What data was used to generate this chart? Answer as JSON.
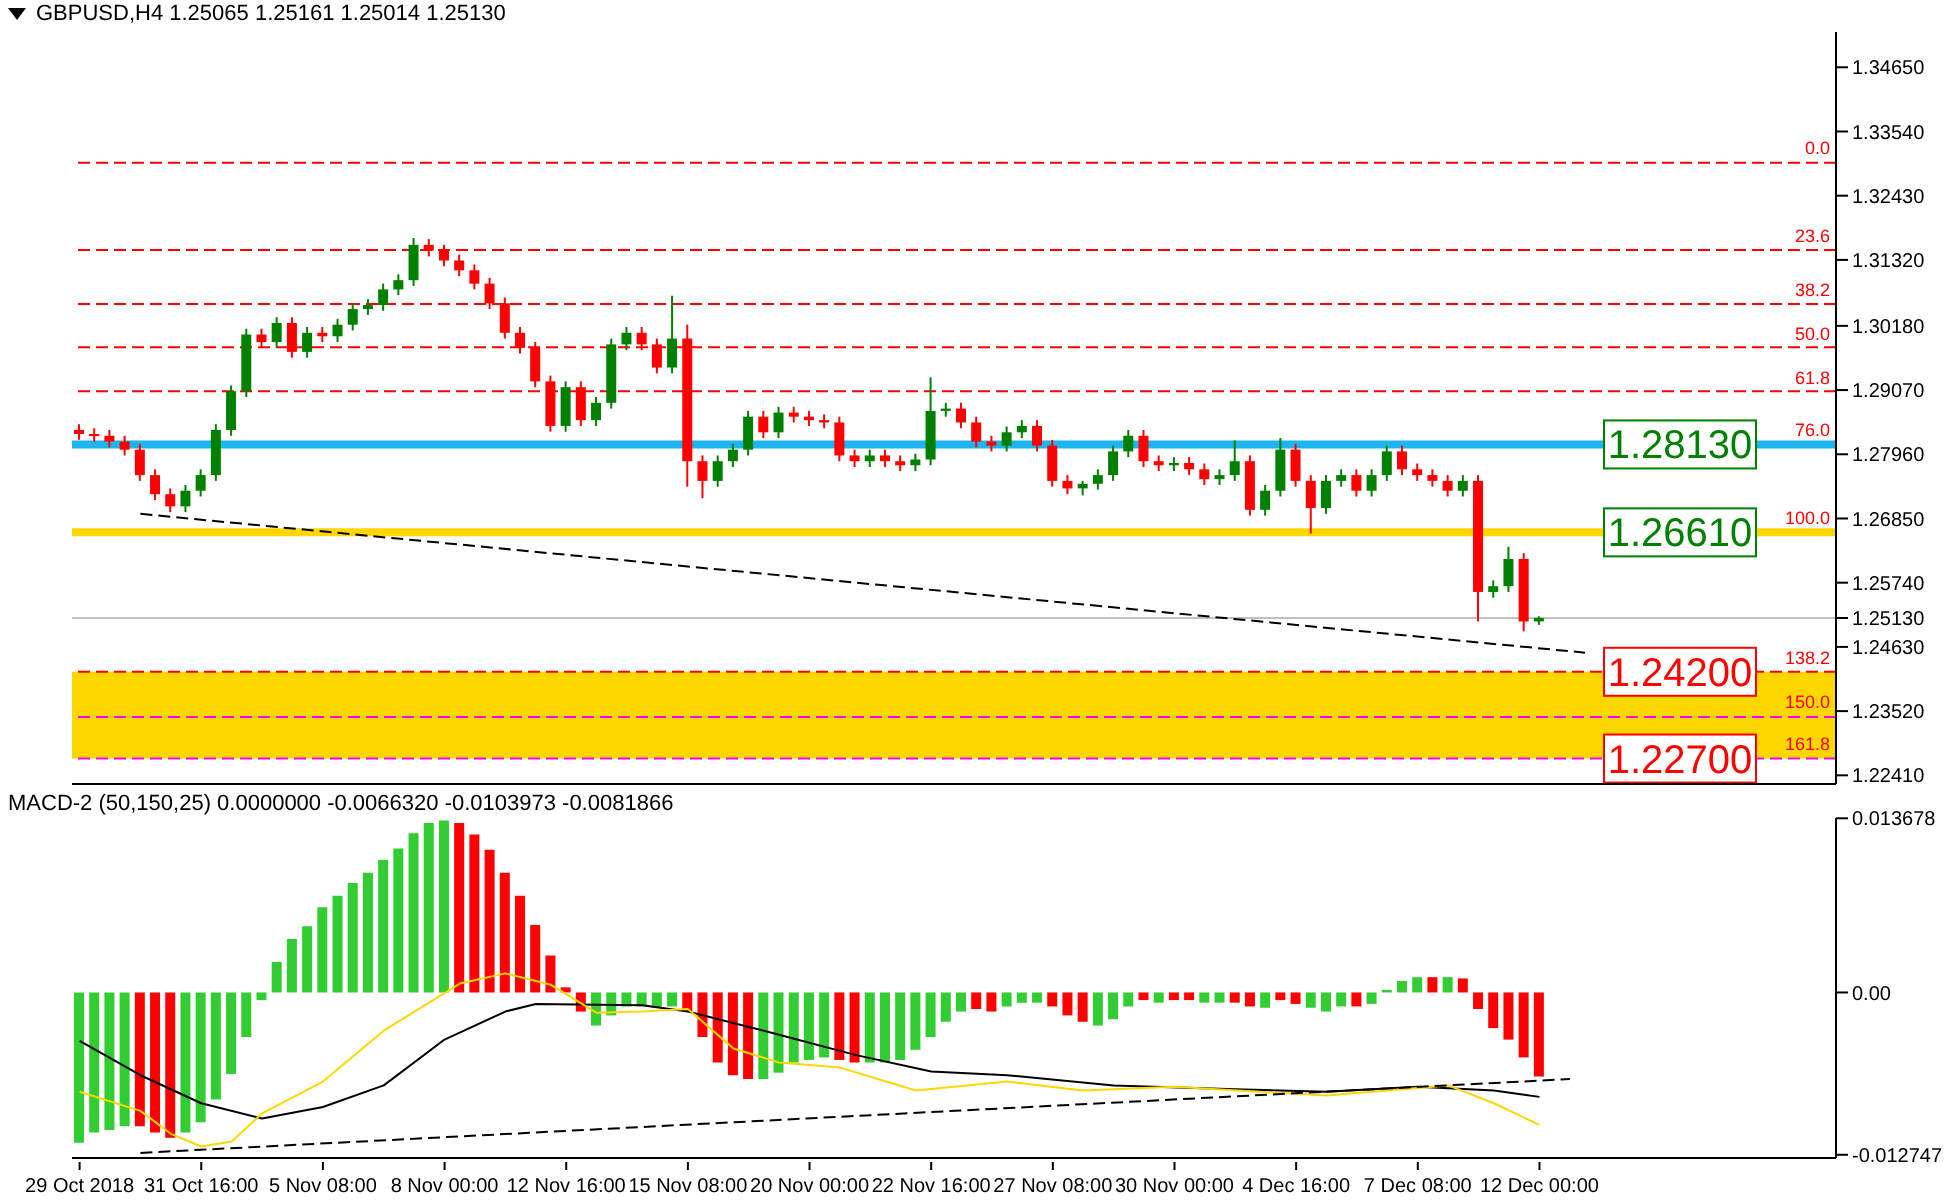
{
  "chart_data": [
    {
      "type": "candlestick",
      "title": "GBPUSD,H4 1.25065 1.25161 1.25014 1.25130",
      "categories": [
        null,
        null,
        null,
        null,
        null,
        null,
        null,
        null,
        null,
        null,
        null,
        null,
        null,
        null,
        null,
        null,
        null,
        null,
        null,
        null,
        null,
        null,
        null,
        null,
        null,
        null,
        null,
        null,
        null,
        null,
        null,
        null,
        null,
        null,
        null,
        null,
        null,
        null,
        null,
        null,
        null,
        null,
        null,
        null,
        null,
        null,
        null,
        null,
        null,
        null,
        null,
        null,
        null,
        null,
        null,
        null,
        null,
        null,
        null,
        null,
        null,
        null,
        null,
        null,
        null,
        null,
        null,
        null,
        null,
        null,
        null,
        null,
        null,
        null,
        null,
        null,
        null,
        null,
        null,
        null,
        null,
        null,
        null,
        null,
        null,
        null,
        null,
        null,
        null,
        null,
        null,
        null,
        null,
        null,
        null,
        null,
        null,
        null,
        null,
        null,
        null,
        null,
        null,
        null,
        null,
        null,
        null,
        null,
        null,
        null,
        null,
        null,
        null,
        null,
        null,
        null
      ],
      "ohlc": [
        [
          1.2838,
          1.2848,
          1.2821,
          1.2831
        ],
        [
          1.2831,
          1.2841,
          1.2818,
          1.2828
        ],
        [
          1.2828,
          1.2838,
          1.2808,
          1.2818
        ],
        [
          1.2818,
          1.2828,
          1.2794,
          1.2804
        ],
        [
          1.2804,
          1.2814,
          1.275,
          1.276
        ],
        [
          1.276,
          1.277,
          1.2717,
          1.2727
        ],
        [
          1.2727,
          1.2737,
          1.2696,
          1.2706
        ],
        [
          1.2706,
          1.2743,
          1.2696,
          1.2733
        ],
        [
          1.2733,
          1.277,
          1.2723,
          1.276
        ],
        [
          1.276,
          1.2848,
          1.275,
          1.2838
        ],
        [
          1.2838,
          1.2915,
          1.2828,
          1.2905
        ],
        [
          1.2905,
          1.3013,
          1.2895,
          1.3003
        ],
        [
          1.3003,
          1.3013,
          1.298,
          1.299
        ],
        [
          1.299,
          1.3033,
          1.298,
          1.3023
        ],
        [
          1.3023,
          1.3033,
          1.2963,
          1.2973
        ],
        [
          1.2973,
          1.3016,
          1.2963,
          1.3006
        ],
        [
          1.3006,
          1.3016,
          1.299,
          1.3
        ],
        [
          1.3,
          1.303,
          1.299,
          1.302
        ],
        [
          1.302,
          1.3057,
          1.301,
          1.3047
        ],
        [
          1.3047,
          1.3064,
          1.3037,
          1.3054
        ],
        [
          1.3054,
          1.3091,
          1.3044,
          1.3081
        ],
        [
          1.3081,
          1.3107,
          1.3071,
          1.3097
        ],
        [
          1.3097,
          1.317,
          1.3087,
          1.3158
        ],
        [
          1.3158,
          1.3168,
          1.3138,
          1.3148
        ],
        [
          1.3148,
          1.3158,
          1.3121,
          1.3131
        ],
        [
          1.3131,
          1.3141,
          1.3104,
          1.3114
        ],
        [
          1.3114,
          1.3124,
          1.3081,
          1.3091
        ],
        [
          1.3091,
          1.3101,
          1.3047,
          1.3057
        ],
        [
          1.3057,
          1.3067,
          1.2996,
          1.3006
        ],
        [
          1.3006,
          1.3016,
          1.297,
          1.298
        ],
        [
          1.298,
          1.299,
          1.2912,
          1.2922
        ],
        [
          1.2922,
          1.2932,
          1.2835,
          1.2845
        ],
        [
          1.2845,
          1.2922,
          1.2835,
          1.2912
        ],
        [
          1.2912,
          1.2922,
          1.2845,
          1.2855
        ],
        [
          1.2855,
          1.2895,
          1.2845,
          1.2885
        ],
        [
          1.2885,
          1.2996,
          1.2875,
          1.2986
        ],
        [
          1.2986,
          1.3016,
          1.2976,
          1.3006
        ],
        [
          1.3006,
          1.3016,
          1.2976,
          1.2986
        ],
        [
          1.2986,
          1.2996,
          1.2936,
          1.2946
        ],
        [
          1.2946,
          1.307,
          1.2936,
          1.2996
        ],
        [
          1.2996,
          1.302,
          1.274,
          1.2784
        ],
        [
          1.2784,
          1.2794,
          1.272,
          1.275
        ],
        [
          1.275,
          1.2794,
          1.274,
          1.2784
        ],
        [
          1.2784,
          1.2814,
          1.2774,
          1.2804
        ],
        [
          1.2804,
          1.2871,
          1.2794,
          1.2861
        ],
        [
          1.2861,
          1.2871,
          1.2824,
          1.2834
        ],
        [
          1.2834,
          1.2878,
          1.2824,
          1.2868
        ],
        [
          1.2868,
          1.2878,
          1.2851,
          1.2861
        ],
        [
          1.2861,
          1.2871,
          1.2845,
          1.2855
        ],
        [
          1.2855,
          1.2865,
          1.2841,
          1.2851
        ],
        [
          1.2851,
          1.2861,
          1.2784,
          1.2794
        ],
        [
          1.2794,
          1.2804,
          1.2774,
          1.2784
        ],
        [
          1.2784,
          1.2804,
          1.2774,
          1.2794
        ],
        [
          1.2794,
          1.2804,
          1.2774,
          1.2784
        ],
        [
          1.2784,
          1.2794,
          1.2767,
          1.2777
        ],
        [
          1.2777,
          1.2797,
          1.2767,
          1.2787
        ],
        [
          1.2787,
          1.2929,
          1.2777,
          1.2871
        ],
        [
          1.2871,
          1.2885,
          1.2861,
          1.2875
        ],
        [
          1.2875,
          1.2885,
          1.2841,
          1.2851
        ],
        [
          1.2851,
          1.2861,
          1.2808,
          1.2818
        ],
        [
          1.2818,
          1.2828,
          1.2801,
          1.2811
        ],
        [
          1.2811,
          1.2844,
          1.2801,
          1.2834
        ],
        [
          1.2834,
          1.2855,
          1.2824,
          1.2845
        ],
        [
          1.2845,
          1.2855,
          1.2801,
          1.2811
        ],
        [
          1.2811,
          1.2821,
          1.274,
          1.275
        ],
        [
          1.275,
          1.276,
          1.2727,
          1.2737
        ],
        [
          1.2737,
          1.275,
          1.2725,
          1.2745
        ],
        [
          1.2745,
          1.277,
          1.2735,
          1.276
        ],
        [
          1.276,
          1.2811,
          1.275,
          1.2801
        ],
        [
          1.2801,
          1.2838,
          1.2791,
          1.2828
        ],
        [
          1.2828,
          1.2838,
          1.2774,
          1.2784
        ],
        [
          1.2784,
          1.2794,
          1.2767,
          1.2777
        ],
        [
          1.2777,
          1.2791,
          1.2767,
          1.2781
        ],
        [
          1.2781,
          1.2791,
          1.276,
          1.277
        ],
        [
          1.277,
          1.278,
          1.2743,
          1.2753
        ],
        [
          1.2753,
          1.277,
          1.2743,
          1.276
        ],
        [
          1.276,
          1.282,
          1.275,
          1.2784
        ],
        [
          1.2784,
          1.2794,
          1.269,
          1.27
        ],
        [
          1.27,
          1.2743,
          1.269,
          1.2733
        ],
        [
          1.2733,
          1.2824,
          1.2723,
          1.2804
        ],
        [
          1.2804,
          1.2814,
          1.274,
          1.275
        ],
        [
          1.275,
          1.276,
          1.2659,
          1.2703
        ],
        [
          1.2703,
          1.276,
          1.2693,
          1.275
        ],
        [
          1.275,
          1.277,
          1.274,
          1.276
        ],
        [
          1.276,
          1.277,
          1.2723,
          1.2733
        ],
        [
          1.2733,
          1.277,
          1.2723,
          1.276
        ],
        [
          1.276,
          1.2811,
          1.275,
          1.2801
        ],
        [
          1.2801,
          1.2811,
          1.276,
          1.277
        ],
        [
          1.277,
          1.278,
          1.275,
          1.276
        ],
        [
          1.276,
          1.277,
          1.274,
          1.275
        ],
        [
          1.275,
          1.276,
          1.2723,
          1.2733
        ],
        [
          1.2733,
          1.276,
          1.2723,
          1.275
        ],
        [
          1.275,
          1.276,
          1.2507,
          1.2558
        ],
        [
          1.2558,
          1.2578,
          1.2548,
          1.2568
        ],
        [
          1.2568,
          1.2636,
          1.2558,
          1.2615
        ],
        [
          1.2615,
          1.2625,
          1.249,
          1.2507
        ],
        [
          1.2507,
          1.2516,
          1.2501,
          1.2513
        ],
        null,
        null,
        null,
        null,
        null,
        null,
        null,
        null,
        null,
        null,
        null,
        null,
        null,
        null,
        null,
        null,
        null,
        null,
        null
      ],
      "colors": [
        "#ff0000",
        "#ff0000",
        "#ff0000",
        "#ff0000",
        "#ff0000",
        "#ff0000",
        "#ff0000",
        "#008000",
        "#008000",
        "#008000",
        "#008000",
        "#008000",
        "#ff0000",
        "#008000",
        "#ff0000",
        "#008000",
        "#ff0000",
        "#008000",
        "#008000",
        "#008000",
        "#008000",
        "#008000",
        "#008000",
        "#ff0000",
        "#ff0000",
        "#ff0000",
        "#ff0000",
        "#ff0000",
        "#ff0000",
        "#ff0000",
        "#ff0000",
        "#ff0000",
        "#008000",
        "#ff0000",
        "#008000",
        "#008000",
        "#008000",
        "#ff0000",
        "#ff0000",
        "#008000",
        "#ff0000",
        "#ff0000",
        "#008000",
        "#008000",
        "#008000",
        "#ff0000",
        "#008000",
        "#ff0000",
        "#ff0000",
        "#ff0000",
        "#ff0000",
        "#ff0000",
        "#008000",
        "#ff0000",
        "#ff0000",
        "#008000",
        "#008000",
        "#008000",
        "#ff0000",
        "#ff0000",
        "#ff0000",
        "#008000",
        "#008000",
        "#ff0000",
        "#ff0000",
        "#ff0000",
        "#008000",
        "#008000",
        "#008000",
        "#008000",
        "#ff0000",
        "#ff0000",
        "#008000",
        "#ff0000",
        "#ff0000",
        "#008000",
        "#008000",
        "#ff0000",
        "#008000",
        "#008000",
        "#ff0000",
        "#ff0000",
        "#008000",
        "#008000",
        "#ff0000",
        "#008000",
        "#008000",
        "#ff0000",
        "#ff0000",
        "#ff0000",
        "#ff0000",
        "#008000",
        "#ff0000",
        "#008000",
        "#008000",
        "#ff0000",
        "#008000",
        null,
        null,
        null,
        null,
        null,
        null,
        null,
        null,
        null,
        null,
        null,
        null,
        null,
        null,
        null,
        null,
        null,
        null,
        null
      ],
      "series": [
        {
          "type": "line",
          "color": "#000000",
          "line_style": "dashed",
          "values": [
            null,
            null,
            null,
            null,
            1.2693,
            null,
            null,
            null,
            null,
            null,
            null,
            null,
            null,
            null,
            null,
            null,
            null,
            null,
            null,
            null,
            null,
            null,
            null,
            null,
            null,
            null,
            null,
            null,
            null,
            null,
            null,
            null,
            null,
            null,
            null,
            null,
            null,
            null,
            null,
            null,
            null,
            null,
            null,
            null,
            null,
            null,
            null,
            null,
            null,
            null,
            null,
            null,
            null,
            null,
            null,
            null,
            null,
            null,
            null,
            null,
            null,
            null,
            null,
            null,
            null,
            null,
            null,
            null,
            null,
            null,
            null,
            null,
            null,
            null,
            null,
            null,
            null,
            null,
            null,
            null,
            null,
            null,
            null,
            null,
            null,
            null,
            null,
            null,
            null,
            null,
            null,
            null,
            null,
            null,
            null,
            null,
            null,
            null,
            null,
            1.2453,
            null,
            null,
            null,
            null,
            null,
            null,
            null,
            null,
            null,
            null,
            null,
            null,
            null,
            null,
            null,
            null
          ]
        }
      ],
      "ylim": [
        1.2226,
        1.3526
      ],
      "yticks": [
        {
          "value": 1.3465,
          "label": "1.34650"
        },
        {
          "value": 1.3354,
          "label": "1.33540"
        },
        {
          "value": 1.3243,
          "label": "1.32430"
        },
        {
          "value": 1.3132,
          "label": "1.31320"
        },
        {
          "value": 1.3018,
          "label": "1.30180"
        },
        {
          "value": 1.2907,
          "label": "1.29070"
        },
        {
          "value": 1.2796,
          "label": "1.27960"
        },
        {
          "value": 1.2685,
          "label": "1.26850"
        },
        {
          "value": 1.2574,
          "label": "1.25740"
        },
        {
          "value": 1.2513,
          "label": "1.25130"
        },
        {
          "value": 1.2463,
          "label": "1.24630"
        },
        {
          "value": 1.2352,
          "label": "1.23520"
        },
        {
          "value": 1.2241,
          "label": "1.22410"
        }
      ],
      "tick_labels": "y",
      "bands": [
        {
          "axis": "y",
          "from": 1.227,
          "to": 1.242,
          "color": "#ffd700"
        }
      ],
      "ref_lines": [
        {
          "axis": "y",
          "value": 1.2513,
          "color": "#c0c0c0"
        },
        {
          "axis": "y",
          "value": 1.33,
          "color": "#ff0000",
          "line_style": "dashed"
        },
        {
          "axis": "y",
          "value": 1.3149,
          "color": "#ff0000",
          "line_style": "dashed"
        },
        {
          "axis": "y",
          "value": 1.3056,
          "color": "#ff0000",
          "line_style": "dashed"
        },
        {
          "axis": "y",
          "value": 1.2981,
          "color": "#ff0000",
          "line_style": "dashed"
        },
        {
          "axis": "y",
          "value": 1.2905,
          "color": "#ff0000",
          "line_style": "dashed"
        },
        {
          "axis": "y",
          "value": 1.2342,
          "color": "#ff00ff",
          "line_style": "dashed"
        },
        {
          "axis": "y",
          "value": 1.2813,
          "label": "1.28130",
          "color": "#1eb4f0"
        },
        {
          "axis": "y",
          "value": 1.2661,
          "label": "1.26610",
          "color": "#ffd700"
        },
        {
          "axis": "y",
          "value": 1.242,
          "label": "1.24200",
          "color": "#ff0000",
          "line_style": "dashed"
        },
        {
          "axis": "y",
          "value": 1.227,
          "label": "1.22700",
          "color": "#ff00ff",
          "line_style": "dashed"
        }
      ],
      "annotations": [
        {
          "text": "0.0",
          "y": 1.33
        },
        {
          "text": "23.6",
          "y": 1.3149
        },
        {
          "text": "38.2",
          "y": 1.3056
        },
        {
          "text": "50.0",
          "y": 1.2981
        },
        {
          "text": "61.8",
          "y": 1.2905
        },
        {
          "text": "76.0",
          "y": 1.2814
        },
        {
          "text": "100.0",
          "y": 1.2661
        },
        {
          "text": "138.2",
          "y": 1.242
        },
        {
          "text": "150.0",
          "y": 1.2342
        },
        {
          "text": "161.8",
          "y": 1.227
        }
      ]
    },
    {
      "type": "bar",
      "title": "MACD-2 (50,150,25) 0.0000000 -0.0066320 -0.0103973 -0.0081866",
      "categories": [
        "29 Oct 2018",
        null,
        null,
        null,
        null,
        null,
        null,
        null,
        "31 Oct 16:00",
        null,
        null,
        null,
        null,
        null,
        null,
        null,
        "5 Nov 08:00",
        null,
        null,
        null,
        null,
        null,
        null,
        null,
        "8 Nov 00:00",
        null,
        null,
        null,
        null,
        null,
        null,
        null,
        "12 Nov 16:00",
        null,
        null,
        null,
        null,
        null,
        null,
        null,
        "15 Nov 08:00",
        null,
        null,
        null,
        null,
        null,
        null,
        null,
        "20 Nov 00:00",
        null,
        null,
        null,
        null,
        null,
        null,
        null,
        "22 Nov 16:00",
        null,
        null,
        null,
        null,
        null,
        null,
        null,
        "27 Nov 08:00",
        null,
        null,
        null,
        null,
        null,
        null,
        null,
        "30 Nov 00:00",
        null,
        null,
        null,
        null,
        null,
        null,
        null,
        "4 Dec 16:00",
        null,
        null,
        null,
        null,
        null,
        null,
        null,
        "7 Dec 08:00",
        null,
        null,
        null,
        null,
        null,
        null,
        null,
        "12 Dec 00:00",
        null,
        null,
        null,
        null,
        null,
        null,
        null,
        null,
        null,
        null,
        null,
        null,
        null,
        null,
        null,
        null,
        null,
        null,
        null
      ],
      "ylim": [
        -0.013,
        0.0137
      ],
      "yticks": [
        0.013678,
        {
          "value": 0,
          "label": "0.00"
        },
        -0.012747
      ],
      "series": [
        {
          "type": "bar",
          "color": "#32cd32",
          "values": [
            -0.0118,
            -0.011,
            -0.0108,
            -0.0105,
            -0.0105,
            -0.011,
            -0.0114,
            -0.011,
            -0.0102,
            -0.0084,
            -0.0064,
            -0.0035,
            -0.0006,
            0.0024,
            0.0042,
            0.0052,
            0.0067,
            0.0076,
            0.0086,
            0.0094,
            0.0104,
            0.0113,
            0.0125,
            0.0133,
            0.0135,
            0.0133,
            0.0124,
            0.0112,
            0.0094,
            0.0076,
            0.0053,
            0.0029,
            0.0004,
            -0.0015,
            -0.0026,
            -0.0018,
            -0.0011,
            -0.0011,
            -0.0012,
            -0.0011,
            -0.0015,
            -0.0035,
            -0.0055,
            -0.0065,
            -0.0068,
            -0.0068,
            -0.0063,
            -0.0055,
            -0.0053,
            -0.0051,
            -0.0053,
            -0.0055,
            -0.0055,
            -0.0055,
            -0.0053,
            -0.0045,
            -0.0035,
            -0.0023,
            -0.0015,
            -0.0013,
            -0.0015,
            -0.0011,
            -0.0008,
            -0.0008,
            -0.0011,
            -0.0018,
            -0.0023,
            -0.0026,
            -0.0021,
            -0.0011,
            -0.0006,
            -0.0008,
            -0.0006,
            -0.0006,
            -0.0008,
            -0.0008,
            -0.0008,
            -0.0011,
            -0.0012,
            -0.0006,
            -0.0009,
            -0.0012,
            -0.0015,
            -0.0011,
            -0.0011,
            -0.0009,
            0.0002,
            0.0009,
            0.0012,
            0.0012,
            0.0012,
            0.0011,
            -0.0013,
            -0.0028,
            -0.0037,
            -0.0051,
            -0.0066,
            null,
            null,
            null,
            null,
            null,
            null,
            null,
            null,
            null,
            null,
            null,
            null,
            null,
            null,
            null,
            null,
            null,
            null,
            null
          ],
          "colors": [
            "#32cd32",
            "#32cd32",
            "#32cd32",
            "#32cd32",
            "#ff0000",
            "#ff0000",
            "#ff0000",
            "#32cd32",
            "#32cd32",
            "#32cd32",
            "#32cd32",
            "#32cd32",
            "#32cd32",
            "#32cd32",
            "#32cd32",
            "#32cd32",
            "#32cd32",
            "#32cd32",
            "#32cd32",
            "#32cd32",
            "#32cd32",
            "#32cd32",
            "#32cd32",
            "#32cd32",
            "#32cd32",
            "#ff0000",
            "#ff0000",
            "#ff0000",
            "#ff0000",
            "#ff0000",
            "#ff0000",
            "#ff0000",
            "#ff0000",
            "#ff0000",
            "#32cd32",
            "#32cd32",
            "#32cd32",
            "#32cd32",
            "#32cd32",
            "#32cd32",
            "#ff0000",
            "#ff0000",
            "#ff0000",
            "#ff0000",
            "#ff0000",
            "#32cd32",
            "#32cd32",
            "#32cd32",
            "#32cd32",
            "#32cd32",
            "#ff0000",
            "#ff0000",
            "#32cd32",
            "#32cd32",
            "#32cd32",
            "#32cd32",
            "#32cd32",
            "#32cd32",
            "#32cd32",
            "#ff0000",
            "#ff0000",
            "#32cd32",
            "#32cd32",
            "#32cd32",
            "#ff0000",
            "#ff0000",
            "#ff0000",
            "#32cd32",
            "#32cd32",
            "#32cd32",
            "#ff0000",
            "#32cd32",
            "#ff0000",
            "#ff0000",
            "#32cd32",
            "#32cd32",
            "#ff0000",
            "#ff0000",
            "#32cd32",
            "#ff0000",
            "#ff0000",
            "#32cd32",
            "#32cd32",
            "#32cd32",
            "#ff0000",
            "#32cd32",
            "#32cd32",
            "#32cd32",
            "#32cd32",
            "#ff0000",
            "#32cd32",
            "#ff0000",
            "#ff0000",
            "#ff0000",
            "#ff0000",
            "#ff0000",
            "#ff0000",
            null,
            null,
            null,
            null,
            null,
            null,
            null,
            null,
            null,
            null,
            null,
            null,
            null,
            null,
            null,
            null,
            null,
            null,
            null
          ]
        },
        {
          "type": "line",
          "color": "#000000",
          "values": [
            -0.0038,
            null,
            null,
            null,
            -0.0065,
            null,
            null,
            null,
            -0.0087,
            null,
            null,
            null,
            -0.0099,
            null,
            null,
            null,
            -0.009,
            null,
            null,
            null,
            -0.0073,
            null,
            null,
            null,
            -0.0037,
            null,
            null,
            null,
            -0.0015,
            null,
            -0.0009,
            null,
            null,
            null,
            null,
            null,
            null,
            -0.001,
            null,
            null,
            -0.0015,
            null,
            null,
            null,
            null,
            -0.003,
            null,
            null,
            null,
            null,
            null,
            -0.0049,
            null,
            null,
            null,
            null,
            -0.0062,
            null,
            null,
            null,
            null,
            -0.0065,
            null,
            null,
            null,
            null,
            null,
            null,
            -0.0073,
            null,
            null,
            null,
            null,
            null,
            null,
            null,
            -0.0076,
            null,
            null,
            null,
            null,
            null,
            -0.0078,
            null,
            null,
            null,
            null,
            null,
            -0.0074,
            null,
            null,
            null,
            null,
            -0.0077,
            null,
            null,
            -0.0082,
            null,
            null,
            null,
            null,
            null,
            null,
            null,
            null,
            null,
            null,
            null,
            null,
            null,
            null,
            null,
            null,
            null,
            null,
            null
          ]
        },
        {
          "type": "line",
          "color": "#ffd700",
          "values": [
            -0.0078,
            null,
            null,
            null,
            -0.0093,
            null,
            -0.0111,
            null,
            -0.0121,
            null,
            -0.0117,
            null,
            -0.0095,
            null,
            null,
            null,
            -0.007,
            null,
            null,
            null,
            -0.003,
            null,
            null,
            null,
            null,
            0.0007,
            null,
            null,
            0.0015,
            null,
            null,
            0.0006,
            null,
            null,
            -0.0016,
            null,
            null,
            -0.0015,
            null,
            null,
            -0.0013,
            null,
            null,
            -0.0044,
            null,
            null,
            -0.0055,
            null,
            null,
            null,
            -0.0059,
            null,
            null,
            null,
            null,
            -0.0077,
            null,
            null,
            null,
            null,
            null,
            -0.007,
            null,
            null,
            null,
            null,
            -0.0077,
            null,
            null,
            null,
            null,
            null,
            -0.0074,
            null,
            null,
            null,
            null,
            null,
            null,
            null,
            null,
            null,
            -0.0081,
            null,
            null,
            null,
            null,
            null,
            null,
            null,
            -0.0073,
            null,
            null,
            -0.0087,
            null,
            null,
            -0.0104,
            null,
            null,
            null,
            null,
            null,
            null,
            null,
            null,
            null,
            null,
            null,
            null,
            null,
            null,
            null,
            null,
            null,
            null,
            null
          ]
        },
        {
          "type": "line",
          "color": "#000000",
          "line_style": "dashed",
          "values": [
            null,
            null,
            null,
            null,
            -0.0126,
            null,
            null,
            null,
            null,
            null,
            null,
            null,
            null,
            null,
            null,
            null,
            null,
            null,
            null,
            null,
            null,
            null,
            null,
            null,
            null,
            null,
            null,
            null,
            null,
            null,
            null,
            null,
            null,
            null,
            null,
            null,
            null,
            null,
            null,
            null,
            null,
            null,
            null,
            null,
            null,
            null,
            null,
            null,
            null,
            null,
            null,
            null,
            null,
            null,
            null,
            null,
            null,
            null,
            null,
            null,
            null,
            null,
            null,
            null,
            null,
            null,
            null,
            null,
            null,
            null,
            null,
            null,
            null,
            null,
            null,
            null,
            null,
            null,
            null,
            null,
            null,
            null,
            null,
            null,
            null,
            null,
            null,
            null,
            null,
            null,
            null,
            null,
            null,
            null,
            null,
            null,
            null,
            null,
            -0.0068,
            null,
            null,
            null,
            null,
            null,
            null,
            null,
            null,
            null,
            null,
            null,
            null,
            null,
            null,
            null,
            null,
            null
          ]
        }
      ]
    }
  ]
}
